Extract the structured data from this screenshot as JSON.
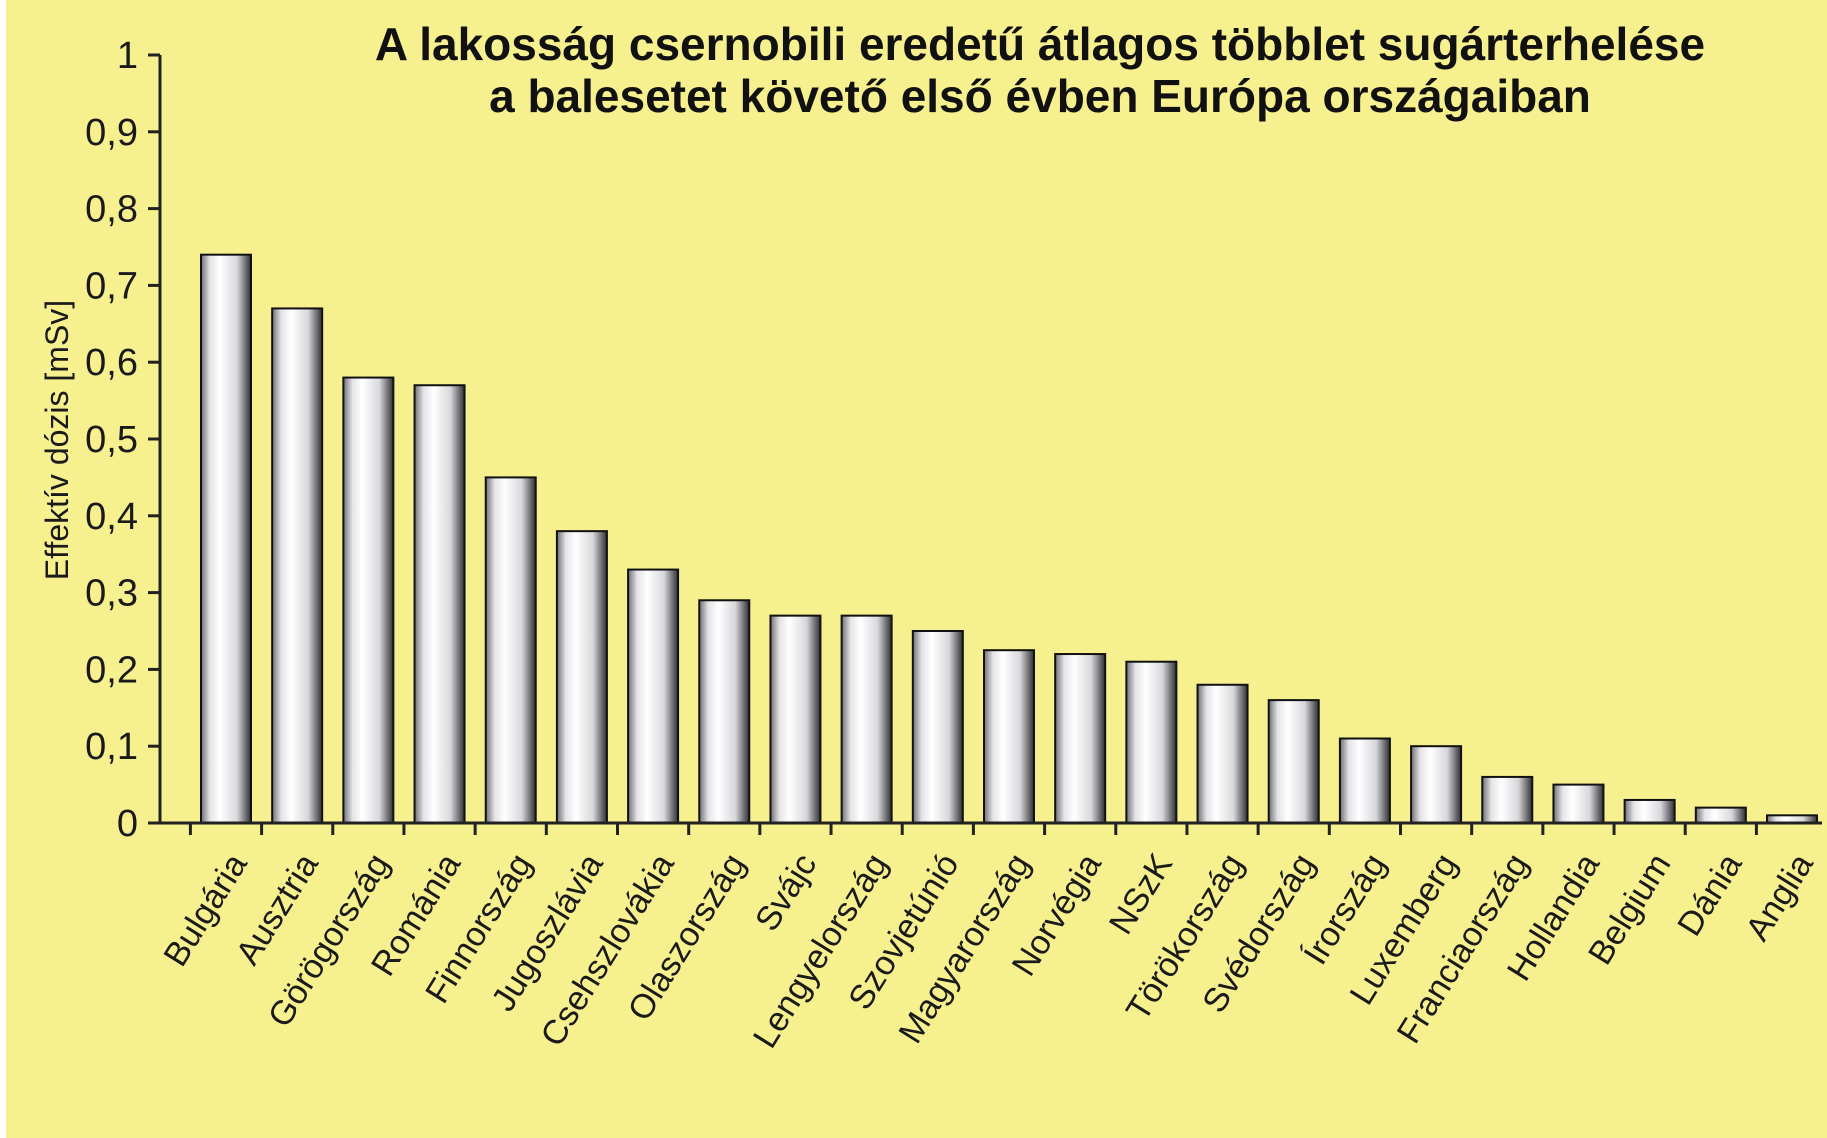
{
  "chart_data": {
    "type": "bar",
    "title": "A lakosság csernobili eredetű átlagos többlet sugárterhelése",
    "subtitle": "a balesetet követő első évben Európa országaiban",
    "xlabel": "",
    "ylabel": "Effektív dózis [mSv]",
    "ylim": [
      0,
      1
    ],
    "yticks": [
      "0",
      "0,1",
      "0,2",
      "0,3",
      "0,4",
      "0,5",
      "0,6",
      "0,7",
      "0,8",
      "0,9",
      "1"
    ],
    "grid": false,
    "legend": "none",
    "categories": [
      "Bulgária",
      "Ausztria",
      "Görögország",
      "Románia",
      "Finnország",
      "Jugoszlávia",
      "Csehszlovákia",
      "Olaszország",
      "Svájc",
      "Lengyelország",
      "Szovjetúnió",
      "Magyarország",
      "Norvégia",
      "NSzK",
      "Törökország",
      "Svédország",
      "Írország",
      "Luxemberg",
      "Franciaország",
      "Hollandia",
      "Belgium",
      "Dánia",
      "Anglia"
    ],
    "values": [
      0.74,
      0.67,
      0.58,
      0.57,
      0.45,
      0.38,
      0.33,
      0.29,
      0.27,
      0.27,
      0.25,
      0.225,
      0.22,
      0.21,
      0.18,
      0.16,
      0.11,
      0.1,
      0.06,
      0.05,
      0.03,
      0.02,
      0.01
    ]
  },
  "colors": {
    "background": "#f7f08f",
    "bar_edge": "#111111",
    "bar_gradient": [
      "#6f6f74",
      "#e4e4e8",
      "#ffffff",
      "#d8d8dc",
      "#2e2e34"
    ],
    "axis": "#222222"
  }
}
